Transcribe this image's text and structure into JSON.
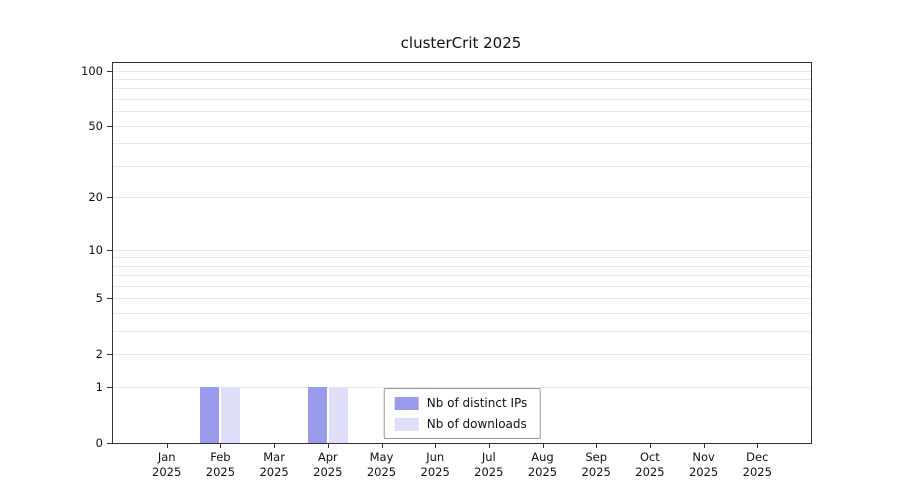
{
  "chart_data": {
    "type": "bar",
    "title": "clusterCrit 2025",
    "categories": [
      "Jan",
      "Feb",
      "Mar",
      "Apr",
      "May",
      "Jun",
      "Jul",
      "Aug",
      "Sep",
      "Oct",
      "Nov",
      "Dec"
    ],
    "year_label": "2025",
    "series": [
      {
        "name": "Nb of distinct IPs",
        "color": "#9b9bee",
        "values": [
          0,
          1,
          0,
          1,
          0,
          0,
          0,
          0,
          0,
          0,
          0,
          0
        ]
      },
      {
        "name": "Nb of downloads",
        "color": "#dedef8",
        "values": [
          0,
          1,
          0,
          1,
          0,
          0,
          0,
          0,
          0,
          0,
          0,
          0
        ]
      }
    ],
    "y_axis": {
      "scale": "log1p",
      "ticks": [
        0,
        1,
        2,
        5,
        10,
        20,
        50,
        100
      ],
      "minor_gridlines": [
        1,
        2,
        3,
        4,
        5,
        6,
        7,
        8,
        9,
        10,
        20,
        30,
        40,
        50,
        60,
        70,
        80,
        90,
        100
      ],
      "max": 110,
      "min": 0
    },
    "grid": true,
    "legend": {
      "position": "lower center"
    }
  }
}
